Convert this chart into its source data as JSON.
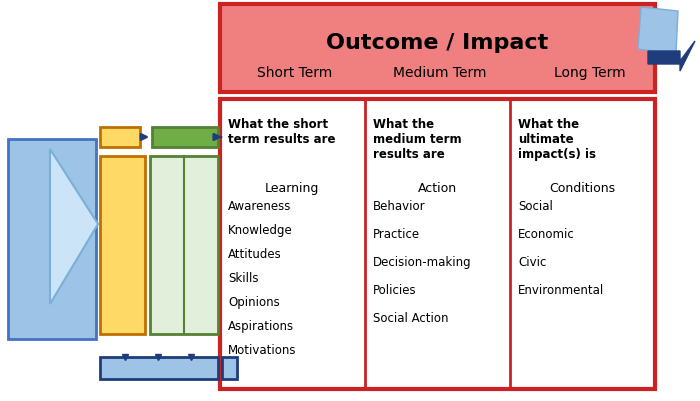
{
  "title": "Outcome / Impact",
  "subtitle_terms": [
    "Short Term",
    "Medium Term",
    "Long Term"
  ],
  "header_bg": "#f08080",
  "header_border": "#cc2222",
  "main_border": "#cc2222",
  "col1_header": "What the short\nterm results are",
  "col2_header": "What the\nmedium term\nresults are",
  "col3_header": "What the\nultimate\nimpact(s) is",
  "col1_sub": "Learning",
  "col1_items": [
    "Awareness",
    "Knowledge",
    "Attitudes",
    "Skills",
    "Opinions",
    "Aspirations",
    "Motivations"
  ],
  "col2_sub": "Action",
  "col2_items": [
    "Behavior",
    "Practice",
    "Decision-making",
    "Policies",
    "Social Action"
  ],
  "col3_sub": "Conditions",
  "col3_items": [
    "Social",
    "Economic",
    "Civic",
    "Environmental"
  ],
  "bg_color": "#ffffff",
  "left_bg_color": "#9dc3e6",
  "left_bg_edge": "#4472c4",
  "chevron_color": "#cce4f7",
  "chevron_edge": "#7ab0d8",
  "orange_face": "#ffd966",
  "orange_edge": "#c07000",
  "green_face": "#e2efda",
  "green_edge": "#538135",
  "green_small_face": "#70ad47",
  "arrow_color": "#1f3d7a",
  "blue_bot_face": "#9dc3e6",
  "blue_bot_edge": "#1f3d7a",
  "dark_blue_arrow": "#1f3d7a",
  "light_blue_rect": "#9dc3e6"
}
